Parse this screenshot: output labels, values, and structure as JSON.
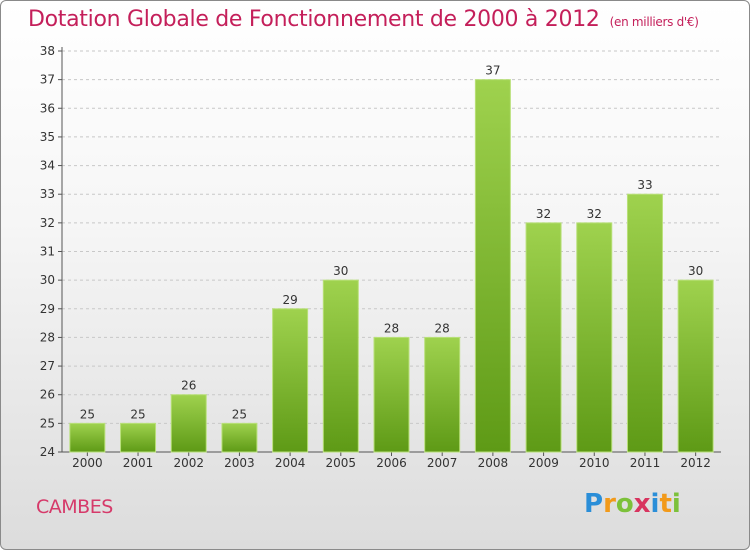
{
  "title": "Dotation Globale de Fonctionnement de 2000 à 2012",
  "unit": "(en milliers d'€)",
  "commune": "CAMBES",
  "logo": {
    "letters": [
      "P",
      "r",
      "o",
      "x",
      "i",
      "t",
      "i"
    ],
    "colors": [
      "#2a8ed8",
      "#f29a1a",
      "#7cc13a",
      "#d8345f",
      "#2a8ed8",
      "#f29a1a",
      "#7cc13a"
    ]
  },
  "chart_data": {
    "type": "bar",
    "title": "Dotation Globale de Fonctionnement de 2000 à 2012",
    "ylabel": "",
    "xlabel": "",
    "categories": [
      "2000",
      "2001",
      "2002",
      "2003",
      "2004",
      "2005",
      "2006",
      "2007",
      "2008",
      "2009",
      "2010",
      "2011",
      "2012"
    ],
    "values": [
      25,
      25,
      26,
      25,
      29,
      30,
      28,
      28,
      37,
      32,
      32,
      33,
      30
    ],
    "ylim": [
      24,
      38
    ],
    "yticks": [
      24,
      25,
      26,
      27,
      28,
      29,
      30,
      31,
      32,
      33,
      34,
      35,
      36,
      37,
      38
    ],
    "grid": "horizontal dashed",
    "bar_color": "#8cc63f"
  }
}
